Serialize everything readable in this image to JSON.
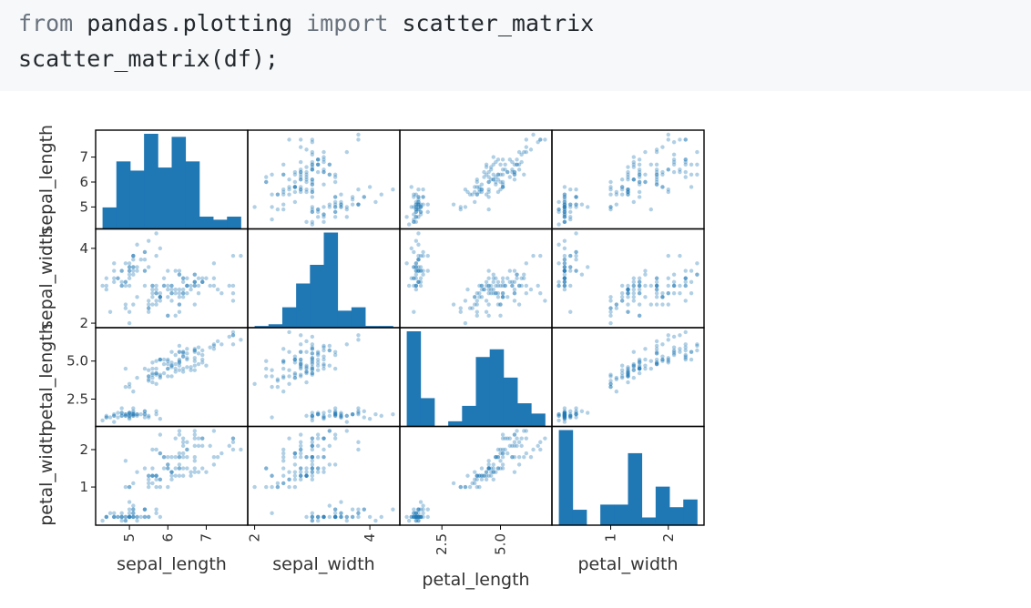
{
  "code": {
    "line1": {
      "kw_from": "from",
      "module": "pandas.plotting",
      "kw_import": "import",
      "name": "scatter_matrix"
    },
    "line2": "scatter_matrix(df);"
  },
  "chart_data": {
    "type": "scatter",
    "kind": "scatter_matrix",
    "variables": [
      "sepal_length",
      "sepal_width",
      "petal_length",
      "petal_width"
    ],
    "ranges": {
      "sepal_length": [
        4.3,
        7.9
      ],
      "sepal_width": [
        2.0,
        4.4
      ],
      "petal_length": [
        1.0,
        6.9
      ],
      "petal_width": [
        0.1,
        2.5
      ]
    },
    "ticks": {
      "sepal_length": {
        "values": [
          5,
          6,
          7
        ],
        "labels": [
          "5",
          "6",
          "7"
        ]
      },
      "sepal_width": {
        "values": [
          2,
          4
        ],
        "labels": [
          "2",
          "4"
        ]
      },
      "petal_length": {
        "values": [
          2.5,
          5.0
        ],
        "labels": [
          "2.5",
          "5.0"
        ]
      },
      "petal_width": {
        "values": [
          1,
          2
        ],
        "labels": [
          "1",
          "2"
        ]
      }
    },
    "histograms": {
      "sepal_length": [
        7,
        22,
        19,
        31,
        20,
        30,
        22,
        4,
        3,
        4
      ],
      "sepal_width": [
        1,
        2,
        12,
        26,
        37,
        56,
        10,
        12,
        1,
        1
      ],
      "petal_length": [
        37,
        11,
        0,
        2,
        8,
        27,
        30,
        19,
        9,
        5
      ],
      "petal_width": [
        37,
        6,
        0,
        8,
        8,
        28,
        3,
        15,
        7,
        10
      ]
    },
    "points": [
      [
        5.1,
        3.5,
        1.4,
        0.2
      ],
      [
        4.9,
        3.0,
        1.4,
        0.2
      ],
      [
        4.7,
        3.2,
        1.3,
        0.2
      ],
      [
        4.6,
        3.1,
        1.5,
        0.2
      ],
      [
        5.0,
        3.6,
        1.4,
        0.2
      ],
      [
        5.4,
        3.9,
        1.7,
        0.4
      ],
      [
        4.6,
        3.4,
        1.4,
        0.3
      ],
      [
        5.0,
        3.4,
        1.5,
        0.2
      ],
      [
        4.4,
        2.9,
        1.4,
        0.2
      ],
      [
        4.9,
        3.1,
        1.5,
        0.1
      ],
      [
        5.4,
        3.7,
        1.5,
        0.2
      ],
      [
        4.8,
        3.4,
        1.6,
        0.2
      ],
      [
        4.8,
        3.0,
        1.4,
        0.1
      ],
      [
        4.3,
        3.0,
        1.1,
        0.1
      ],
      [
        5.8,
        4.0,
        1.2,
        0.2
      ],
      [
        5.7,
        4.4,
        1.5,
        0.4
      ],
      [
        5.4,
        3.9,
        1.3,
        0.4
      ],
      [
        5.1,
        3.5,
        1.4,
        0.3
      ],
      [
        5.7,
        3.8,
        1.7,
        0.3
      ],
      [
        5.1,
        3.8,
        1.5,
        0.3
      ],
      [
        5.4,
        3.4,
        1.7,
        0.2
      ],
      [
        5.1,
        3.7,
        1.5,
        0.4
      ],
      [
        4.6,
        3.6,
        1.0,
        0.2
      ],
      [
        5.1,
        3.3,
        1.7,
        0.5
      ],
      [
        4.8,
        3.4,
        1.9,
        0.2
      ],
      [
        5.0,
        3.0,
        1.6,
        0.2
      ],
      [
        5.0,
        3.4,
        1.6,
        0.4
      ],
      [
        5.2,
        3.5,
        1.5,
        0.2
      ],
      [
        5.2,
        3.4,
        1.4,
        0.2
      ],
      [
        4.7,
        3.2,
        1.6,
        0.2
      ],
      [
        4.8,
        3.1,
        1.6,
        0.2
      ],
      [
        5.4,
        3.4,
        1.5,
        0.4
      ],
      [
        5.2,
        4.1,
        1.5,
        0.1
      ],
      [
        5.5,
        4.2,
        1.4,
        0.2
      ],
      [
        4.9,
        3.1,
        1.5,
        0.2
      ],
      [
        5.0,
        3.2,
        1.2,
        0.2
      ],
      [
        5.5,
        3.5,
        1.3,
        0.2
      ],
      [
        4.9,
        3.6,
        1.4,
        0.1
      ],
      [
        4.4,
        3.0,
        1.3,
        0.2
      ],
      [
        5.1,
        3.4,
        1.5,
        0.2
      ],
      [
        5.0,
        3.5,
        1.3,
        0.3
      ],
      [
        4.5,
        2.3,
        1.3,
        0.3
      ],
      [
        4.4,
        3.2,
        1.3,
        0.2
      ],
      [
        5.0,
        3.5,
        1.6,
        0.6
      ],
      [
        5.1,
        3.8,
        1.9,
        0.4
      ],
      [
        4.8,
        3.0,
        1.4,
        0.3
      ],
      [
        5.1,
        3.8,
        1.6,
        0.2
      ],
      [
        4.6,
        3.2,
        1.4,
        0.2
      ],
      [
        5.3,
        3.7,
        1.5,
        0.2
      ],
      [
        5.0,
        3.3,
        1.4,
        0.2
      ],
      [
        7.0,
        3.2,
        4.7,
        1.4
      ],
      [
        6.4,
        3.2,
        4.5,
        1.5
      ],
      [
        6.9,
        3.1,
        4.9,
        1.5
      ],
      [
        5.5,
        2.3,
        4.0,
        1.3
      ],
      [
        6.5,
        2.8,
        4.6,
        1.5
      ],
      [
        5.7,
        2.8,
        4.5,
        1.3
      ],
      [
        6.3,
        3.3,
        4.7,
        1.6
      ],
      [
        4.9,
        2.4,
        3.3,
        1.0
      ],
      [
        6.6,
        2.9,
        4.6,
        1.3
      ],
      [
        5.2,
        2.7,
        3.9,
        1.4
      ],
      [
        5.0,
        2.0,
        3.5,
        1.0
      ],
      [
        5.9,
        3.0,
        4.2,
        1.5
      ],
      [
        6.0,
        2.2,
        4.0,
        1.0
      ],
      [
        6.1,
        2.9,
        4.7,
        1.4
      ],
      [
        5.6,
        2.9,
        3.6,
        1.3
      ],
      [
        6.7,
        3.1,
        4.4,
        1.4
      ],
      [
        5.6,
        3.0,
        4.5,
        1.5
      ],
      [
        5.8,
        2.7,
        4.1,
        1.0
      ],
      [
        6.2,
        2.2,
        4.5,
        1.5
      ],
      [
        5.6,
        2.5,
        3.9,
        1.1
      ],
      [
        5.9,
        3.2,
        4.8,
        1.8
      ],
      [
        6.1,
        2.8,
        4.0,
        1.3
      ],
      [
        6.3,
        2.5,
        4.9,
        1.5
      ],
      [
        6.1,
        2.8,
        4.7,
        1.2
      ],
      [
        6.4,
        2.9,
        4.3,
        1.3
      ],
      [
        6.6,
        3.0,
        4.4,
        1.4
      ],
      [
        6.8,
        2.8,
        4.8,
        1.4
      ],
      [
        6.7,
        3.0,
        5.0,
        1.7
      ],
      [
        6.0,
        2.9,
        4.5,
        1.5
      ],
      [
        5.7,
        2.6,
        3.5,
        1.0
      ],
      [
        5.5,
        2.4,
        3.8,
        1.1
      ],
      [
        5.5,
        2.4,
        3.7,
        1.0
      ],
      [
        5.8,
        2.7,
        3.9,
        1.2
      ],
      [
        6.0,
        2.7,
        5.1,
        1.6
      ],
      [
        5.4,
        3.0,
        4.5,
        1.5
      ],
      [
        6.0,
        3.4,
        4.5,
        1.6
      ],
      [
        6.7,
        3.1,
        4.7,
        1.5
      ],
      [
        6.3,
        2.3,
        4.4,
        1.3
      ],
      [
        5.6,
        3.0,
        4.1,
        1.3
      ],
      [
        5.5,
        2.5,
        4.0,
        1.3
      ],
      [
        5.5,
        2.6,
        4.4,
        1.2
      ],
      [
        6.1,
        3.0,
        4.6,
        1.4
      ],
      [
        5.8,
        2.6,
        4.0,
        1.2
      ],
      [
        5.0,
        2.3,
        3.3,
        1.0
      ],
      [
        5.6,
        2.7,
        4.2,
        1.3
      ],
      [
        5.7,
        3.0,
        4.2,
        1.2
      ],
      [
        5.7,
        2.9,
        4.2,
        1.3
      ],
      [
        6.2,
        2.9,
        4.3,
        1.3
      ],
      [
        5.1,
        2.5,
        3.0,
        1.1
      ],
      [
        5.7,
        2.8,
        4.1,
        1.3
      ],
      [
        6.3,
        3.3,
        6.0,
        2.5
      ],
      [
        5.8,
        2.7,
        5.1,
        1.9
      ],
      [
        7.1,
        3.0,
        5.9,
        2.1
      ],
      [
        6.3,
        2.9,
        5.6,
        1.8
      ],
      [
        6.5,
        3.0,
        5.8,
        2.2
      ],
      [
        7.6,
        3.0,
        6.6,
        2.1
      ],
      [
        4.9,
        2.5,
        4.5,
        1.7
      ],
      [
        7.3,
        2.9,
        6.3,
        1.8
      ],
      [
        6.7,
        2.5,
        5.8,
        1.8
      ],
      [
        7.2,
        3.6,
        6.1,
        2.5
      ],
      [
        6.5,
        3.2,
        5.1,
        2.0
      ],
      [
        6.4,
        2.7,
        5.3,
        1.9
      ],
      [
        6.8,
        3.0,
        5.5,
        2.1
      ],
      [
        5.7,
        2.5,
        5.0,
        2.0
      ],
      [
        5.8,
        2.8,
        5.1,
        2.4
      ],
      [
        6.4,
        3.2,
        5.3,
        2.3
      ],
      [
        6.5,
        3.0,
        5.5,
        1.8
      ],
      [
        7.7,
        3.8,
        6.7,
        2.2
      ],
      [
        7.7,
        2.6,
        6.9,
        2.3
      ],
      [
        6.0,
        2.2,
        5.0,
        1.5
      ],
      [
        6.9,
        3.2,
        5.7,
        2.3
      ],
      [
        5.6,
        2.8,
        4.9,
        2.0
      ],
      [
        7.7,
        2.8,
        6.7,
        2.0
      ],
      [
        6.3,
        2.7,
        4.9,
        1.8
      ],
      [
        6.7,
        3.3,
        5.7,
        2.1
      ],
      [
        7.2,
        3.2,
        6.0,
        1.8
      ],
      [
        6.2,
        2.8,
        4.8,
        1.8
      ],
      [
        6.1,
        3.0,
        4.9,
        1.8
      ],
      [
        6.4,
        2.8,
        5.6,
        2.1
      ],
      [
        7.2,
        3.0,
        5.8,
        1.6
      ],
      [
        7.4,
        2.8,
        6.1,
        1.9
      ],
      [
        7.9,
        3.8,
        6.4,
        2.0
      ],
      [
        6.4,
        2.8,
        5.6,
        2.2
      ],
      [
        6.3,
        2.8,
        5.1,
        1.5
      ],
      [
        6.1,
        2.6,
        5.6,
        1.4
      ],
      [
        7.7,
        3.0,
        6.1,
        2.3
      ],
      [
        6.3,
        3.4,
        5.6,
        2.4
      ],
      [
        6.4,
        3.1,
        5.5,
        1.8
      ],
      [
        6.0,
        3.0,
        4.8,
        1.8
      ],
      [
        6.9,
        3.1,
        5.4,
        2.1
      ],
      [
        6.7,
        3.1,
        5.6,
        2.4
      ],
      [
        6.9,
        3.1,
        5.1,
        2.3
      ],
      [
        5.8,
        2.7,
        5.1,
        1.9
      ],
      [
        6.8,
        3.2,
        5.9,
        2.3
      ],
      [
        6.7,
        3.3,
        5.7,
        2.5
      ],
      [
        6.7,
        3.0,
        5.2,
        2.3
      ],
      [
        6.3,
        2.5,
        5.0,
        1.9
      ],
      [
        6.5,
        3.0,
        5.2,
        2.0
      ],
      [
        6.2,
        3.4,
        5.4,
        2.3
      ],
      [
        5.9,
        3.0,
        5.1,
        1.8
      ]
    ],
    "colors": {
      "marker": "#1f77b4",
      "bar": "#1f77b4",
      "frame": "#000000"
    }
  }
}
